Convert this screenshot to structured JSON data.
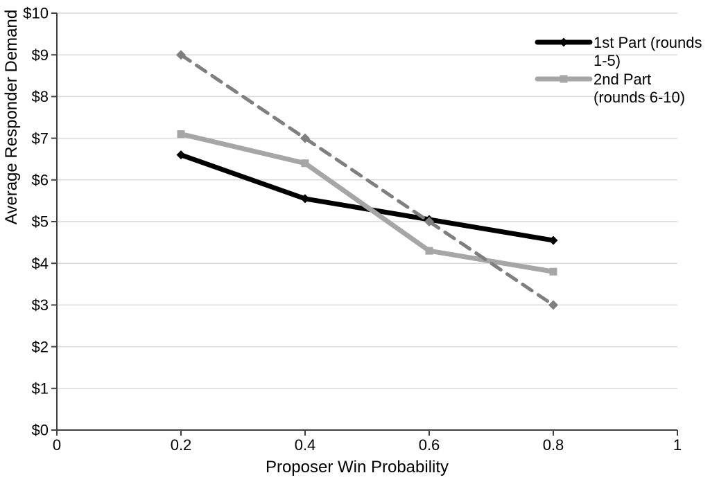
{
  "chart_data": {
    "type": "line",
    "title": "",
    "xlabel": "Proposer Win Probability",
    "ylabel": "Average Responder Demand",
    "xlim": [
      0,
      1
    ],
    "ylim": [
      0,
      10
    ],
    "xticks": [
      0,
      0.2,
      0.4,
      0.6,
      0.8,
      1
    ],
    "xtick_labels": [
      "0",
      "0.2",
      "0.4",
      "0.6",
      "0.8",
      "1"
    ],
    "yticks": [
      0,
      1,
      2,
      3,
      4,
      5,
      6,
      7,
      8,
      9,
      10
    ],
    "ytick_labels": [
      "$0",
      "$1",
      "$2",
      "$3",
      "$4",
      "$5",
      "$6",
      "$7",
      "$8",
      "$9",
      "$10"
    ],
    "grid": "horizontal",
    "legend_position": "top-right",
    "x": [
      0.2,
      0.4,
      0.6,
      0.8
    ],
    "series": [
      {
        "name": "1st Part (rounds 1-5)",
        "values": [
          6.6,
          5.55,
          5.05,
          4.55
        ],
        "color": "#000000",
        "style": "solid",
        "marker": "diamond",
        "line_width": 7,
        "in_legend": true,
        "legend_lines": [
          "1st Part (rounds",
          "1-5)"
        ]
      },
      {
        "name": "2nd Part (rounds 6-10)",
        "values": [
          7.1,
          6.4,
          4.3,
          3.8
        ],
        "color": "#a6a6a6",
        "style": "solid",
        "marker": "square",
        "line_width": 7,
        "in_legend": true,
        "legend_lines": [
          "2nd Part",
          "(rounds 6-10)"
        ]
      },
      {
        "name": "",
        "values": [
          9,
          7,
          5,
          3
        ],
        "color": "#7f7f7f",
        "style": "dashed",
        "marker": "diamond",
        "line_width": 5,
        "in_legend": false,
        "legend_lines": []
      }
    ],
    "colors": {
      "grid": "#d9d9d9",
      "axis": "#404040",
      "text": "#000000",
      "background": "#ffffff"
    }
  }
}
